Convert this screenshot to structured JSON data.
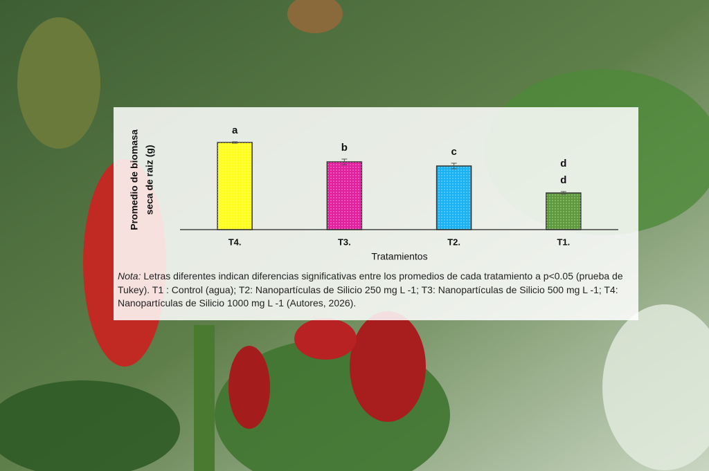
{
  "chart_data": {
    "type": "bar",
    "y_label": [
      "Promedio de biomasa",
      "seca de raiz (g)"
    ],
    "x_label": "Tratamientos",
    "categories": [
      "T4.",
      "T3.",
      "T2.",
      "T1."
    ],
    "values": [
      1.26,
      0.98,
      0.92,
      0.53
    ],
    "errors": [
      0.01,
      0.04,
      0.04,
      0.02
    ],
    "letters": [
      [
        "a"
      ],
      [
        "b"
      ],
      [
        "c"
      ],
      [
        "d",
        "d"
      ]
    ],
    "colors": [
      "#ffff1a",
      "#e0209e",
      "#1ab2f2",
      "#5e9a3c"
    ],
    "ylim": [
      0,
      1.4
    ],
    "note": {
      "lead": "Nota:",
      "text": " Letras diferentes indican diferencias significativas entre los promedios de cada tratamiento a p<0.05 (prueba de Tukey). T1 : Control (agua); T2: Nanopartículas de Silicio 250 mg L -1; T3: Nanopartículas de Silicio 500 mg L -1; T4: Nanopartículas de Silicio 1000 mg L -1 (Autores, 2026)."
    }
  }
}
